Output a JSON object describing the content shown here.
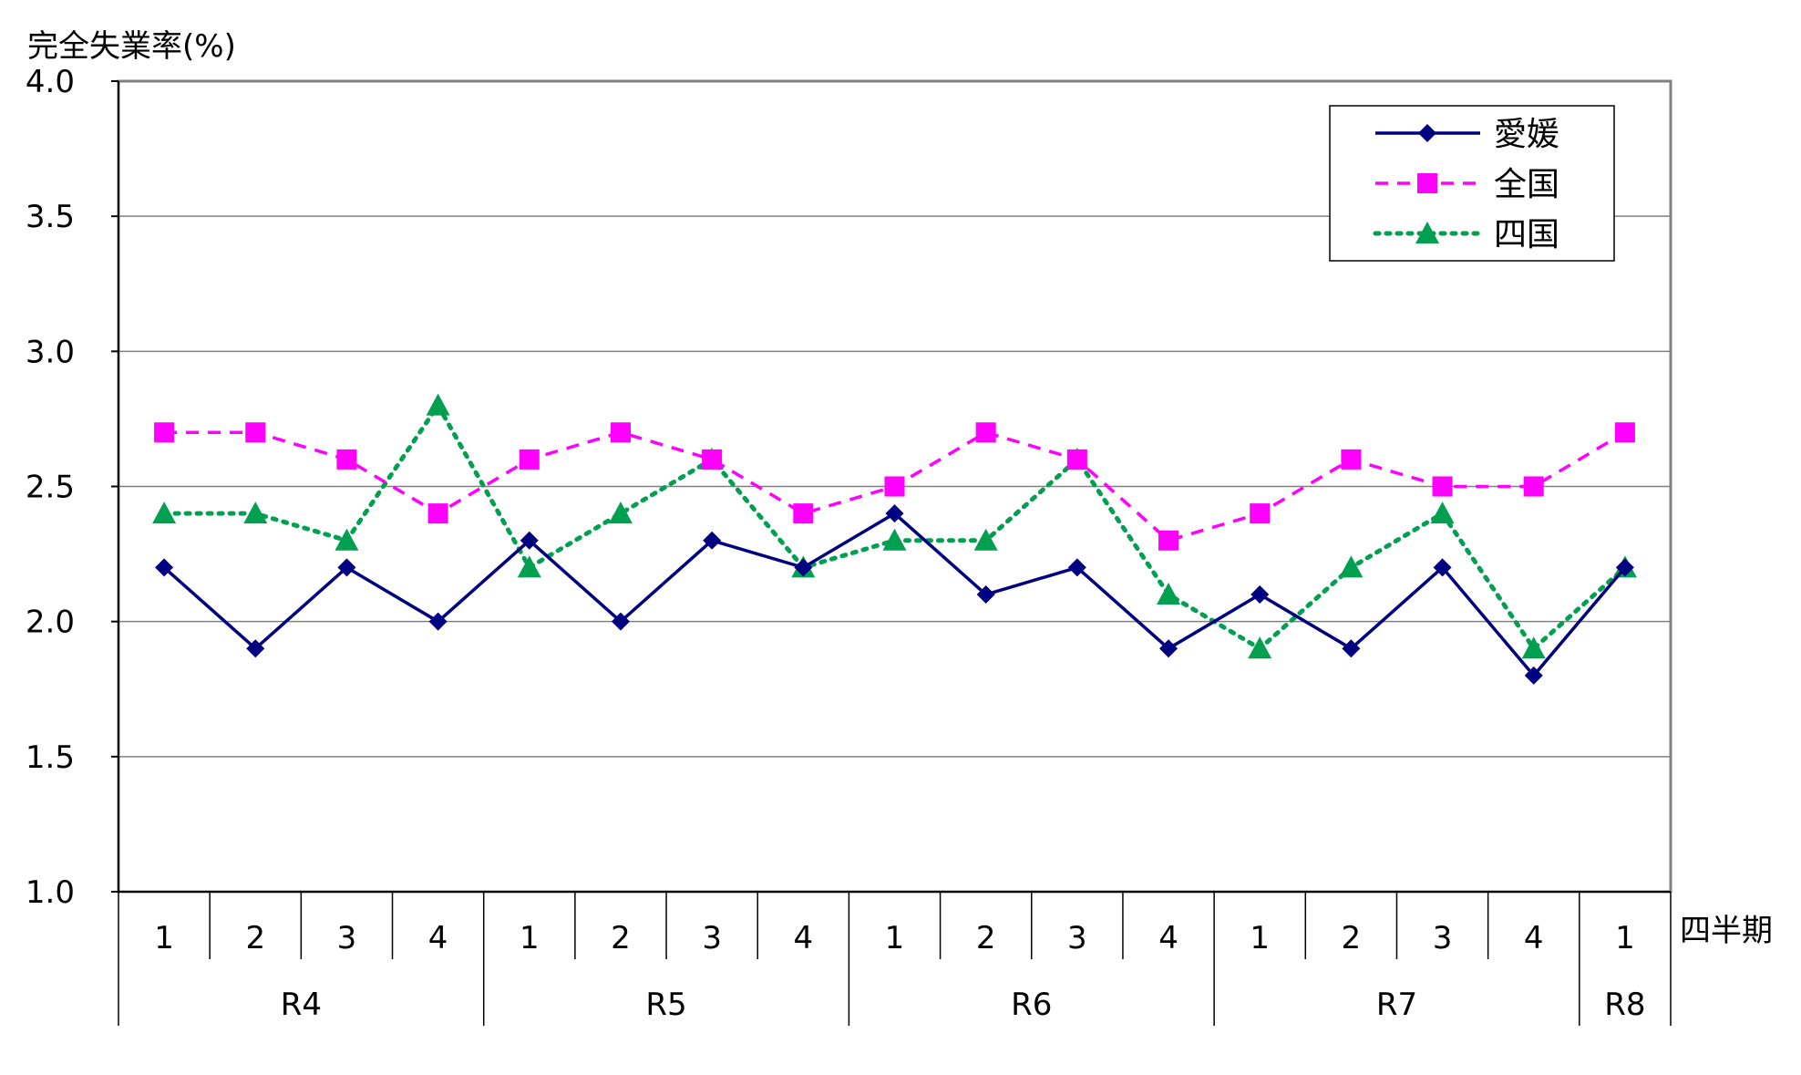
{
  "chart_data": {
    "type": "line",
    "ylabel": "完全失業率(%)",
    "xlabel": "四半期",
    "ylim": [
      1.0,
      4.0
    ],
    "yticks": [
      "1.0",
      "1.5",
      "2.0",
      "2.5",
      "3.0",
      "3.5",
      "4.0"
    ],
    "grid": true,
    "legend_position": "top-right",
    "categories": [
      "1",
      "2",
      "3",
      "4",
      "1",
      "2",
      "3",
      "4",
      "1",
      "2",
      "3",
      "4",
      "1",
      "2",
      "3",
      "4",
      "1"
    ],
    "groups": [
      {
        "label": "R4",
        "count": 4
      },
      {
        "label": "R5",
        "count": 4
      },
      {
        "label": "R6",
        "count": 4
      },
      {
        "label": "R7",
        "count": 4
      },
      {
        "label": "R8",
        "count": 1
      }
    ],
    "series": [
      {
        "name": "愛媛",
        "color": "#000080",
        "marker": "diamond",
        "dash": "solid",
        "values": [
          2.2,
          1.9,
          2.2,
          2.0,
          2.3,
          2.0,
          2.3,
          2.2,
          2.4,
          2.1,
          2.2,
          1.9,
          2.1,
          1.9,
          2.2,
          1.8,
          2.2
        ]
      },
      {
        "name": "全国",
        "color": "#ff00ff",
        "marker": "square",
        "dash": "dashed",
        "values": [
          2.7,
          2.7,
          2.6,
          2.4,
          2.6,
          2.7,
          2.6,
          2.4,
          2.5,
          2.7,
          2.6,
          2.3,
          2.4,
          2.6,
          2.5,
          2.5,
          2.7
        ]
      },
      {
        "name": "四国",
        "color": "#00a050",
        "marker": "triangle",
        "dash": "dotted",
        "values": [
          2.4,
          2.4,
          2.3,
          2.8,
          2.2,
          2.4,
          2.6,
          2.2,
          2.3,
          2.3,
          2.6,
          2.1,
          1.9,
          2.2,
          2.4,
          1.9,
          2.2
        ]
      }
    ]
  }
}
